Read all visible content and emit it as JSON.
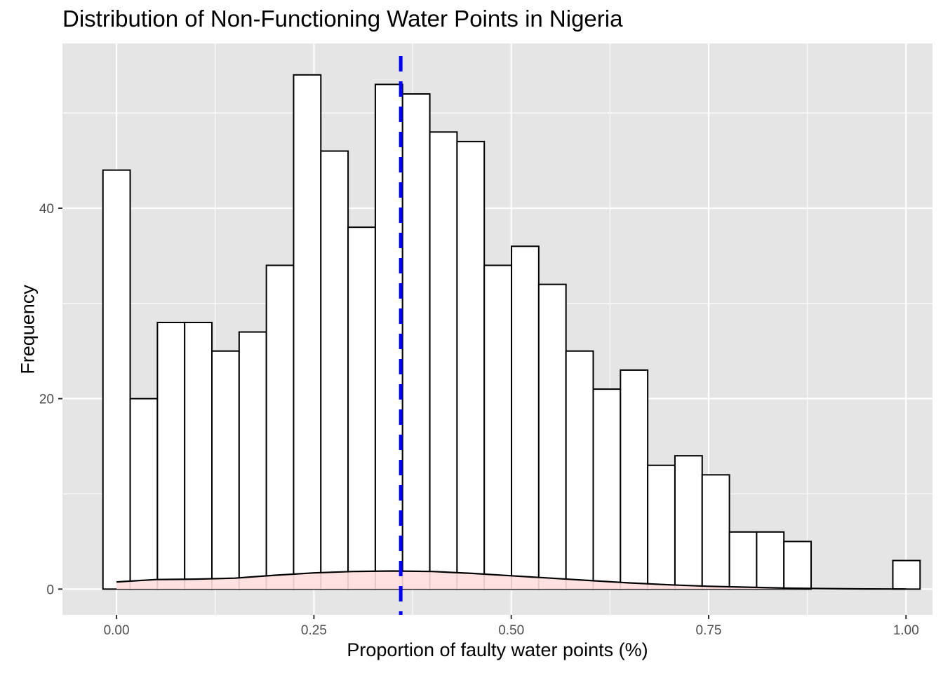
{
  "chart_data": {
    "type": "bar",
    "title": "Distribution of Non-Functioning Water Points in Nigeria",
    "xlabel": "Proportion of faulty water points (%)",
    "ylabel": "Frequency",
    "bin_width": 0.0345,
    "bins_start": -0.0172,
    "values": [
      44,
      20,
      28,
      28,
      25,
      27,
      34,
      54,
      46,
      38,
      53,
      52,
      48,
      47,
      34,
      36,
      32,
      25,
      21,
      23,
      13,
      14,
      12,
      6,
      6,
      5,
      0,
      0,
      0,
      3
    ],
    "xlim": [
      -0.0685,
      1.0335
    ],
    "ylim": [
      -2.7,
      57.3
    ],
    "x_ticks": [
      0.0,
      0.25,
      0.5,
      0.75,
      1.0
    ],
    "x_tick_labels": [
      "0.00",
      "0.25",
      "0.50",
      "0.75",
      "1.00"
    ],
    "y_ticks": [
      0,
      20,
      40
    ],
    "y_tick_labels": [
      "0",
      "20",
      "40"
    ],
    "mean_line": {
      "x": 0.36,
      "color": "#0000ff",
      "style": "dashed"
    },
    "density": {
      "fill": "#ffdede",
      "x": [
        0.0,
        0.05,
        0.1,
        0.15,
        0.2,
        0.25,
        0.3,
        0.35,
        0.4,
        0.45,
        0.5,
        0.55,
        0.6,
        0.65,
        0.7,
        0.75,
        0.8,
        0.85,
        0.9,
        0.95,
        1.0
      ],
      "y": [
        0.75,
        1.0,
        1.05,
        1.15,
        1.45,
        1.7,
        1.85,
        1.9,
        1.85,
        1.65,
        1.4,
        1.15,
        0.9,
        0.65,
        0.45,
        0.3,
        0.2,
        0.1,
        0.05,
        0.02,
        0.01
      ]
    },
    "panel_background": "#e5e5e5",
    "grid": true,
    "bar_fill": "#ffffff",
    "bar_outline": "#000000"
  }
}
